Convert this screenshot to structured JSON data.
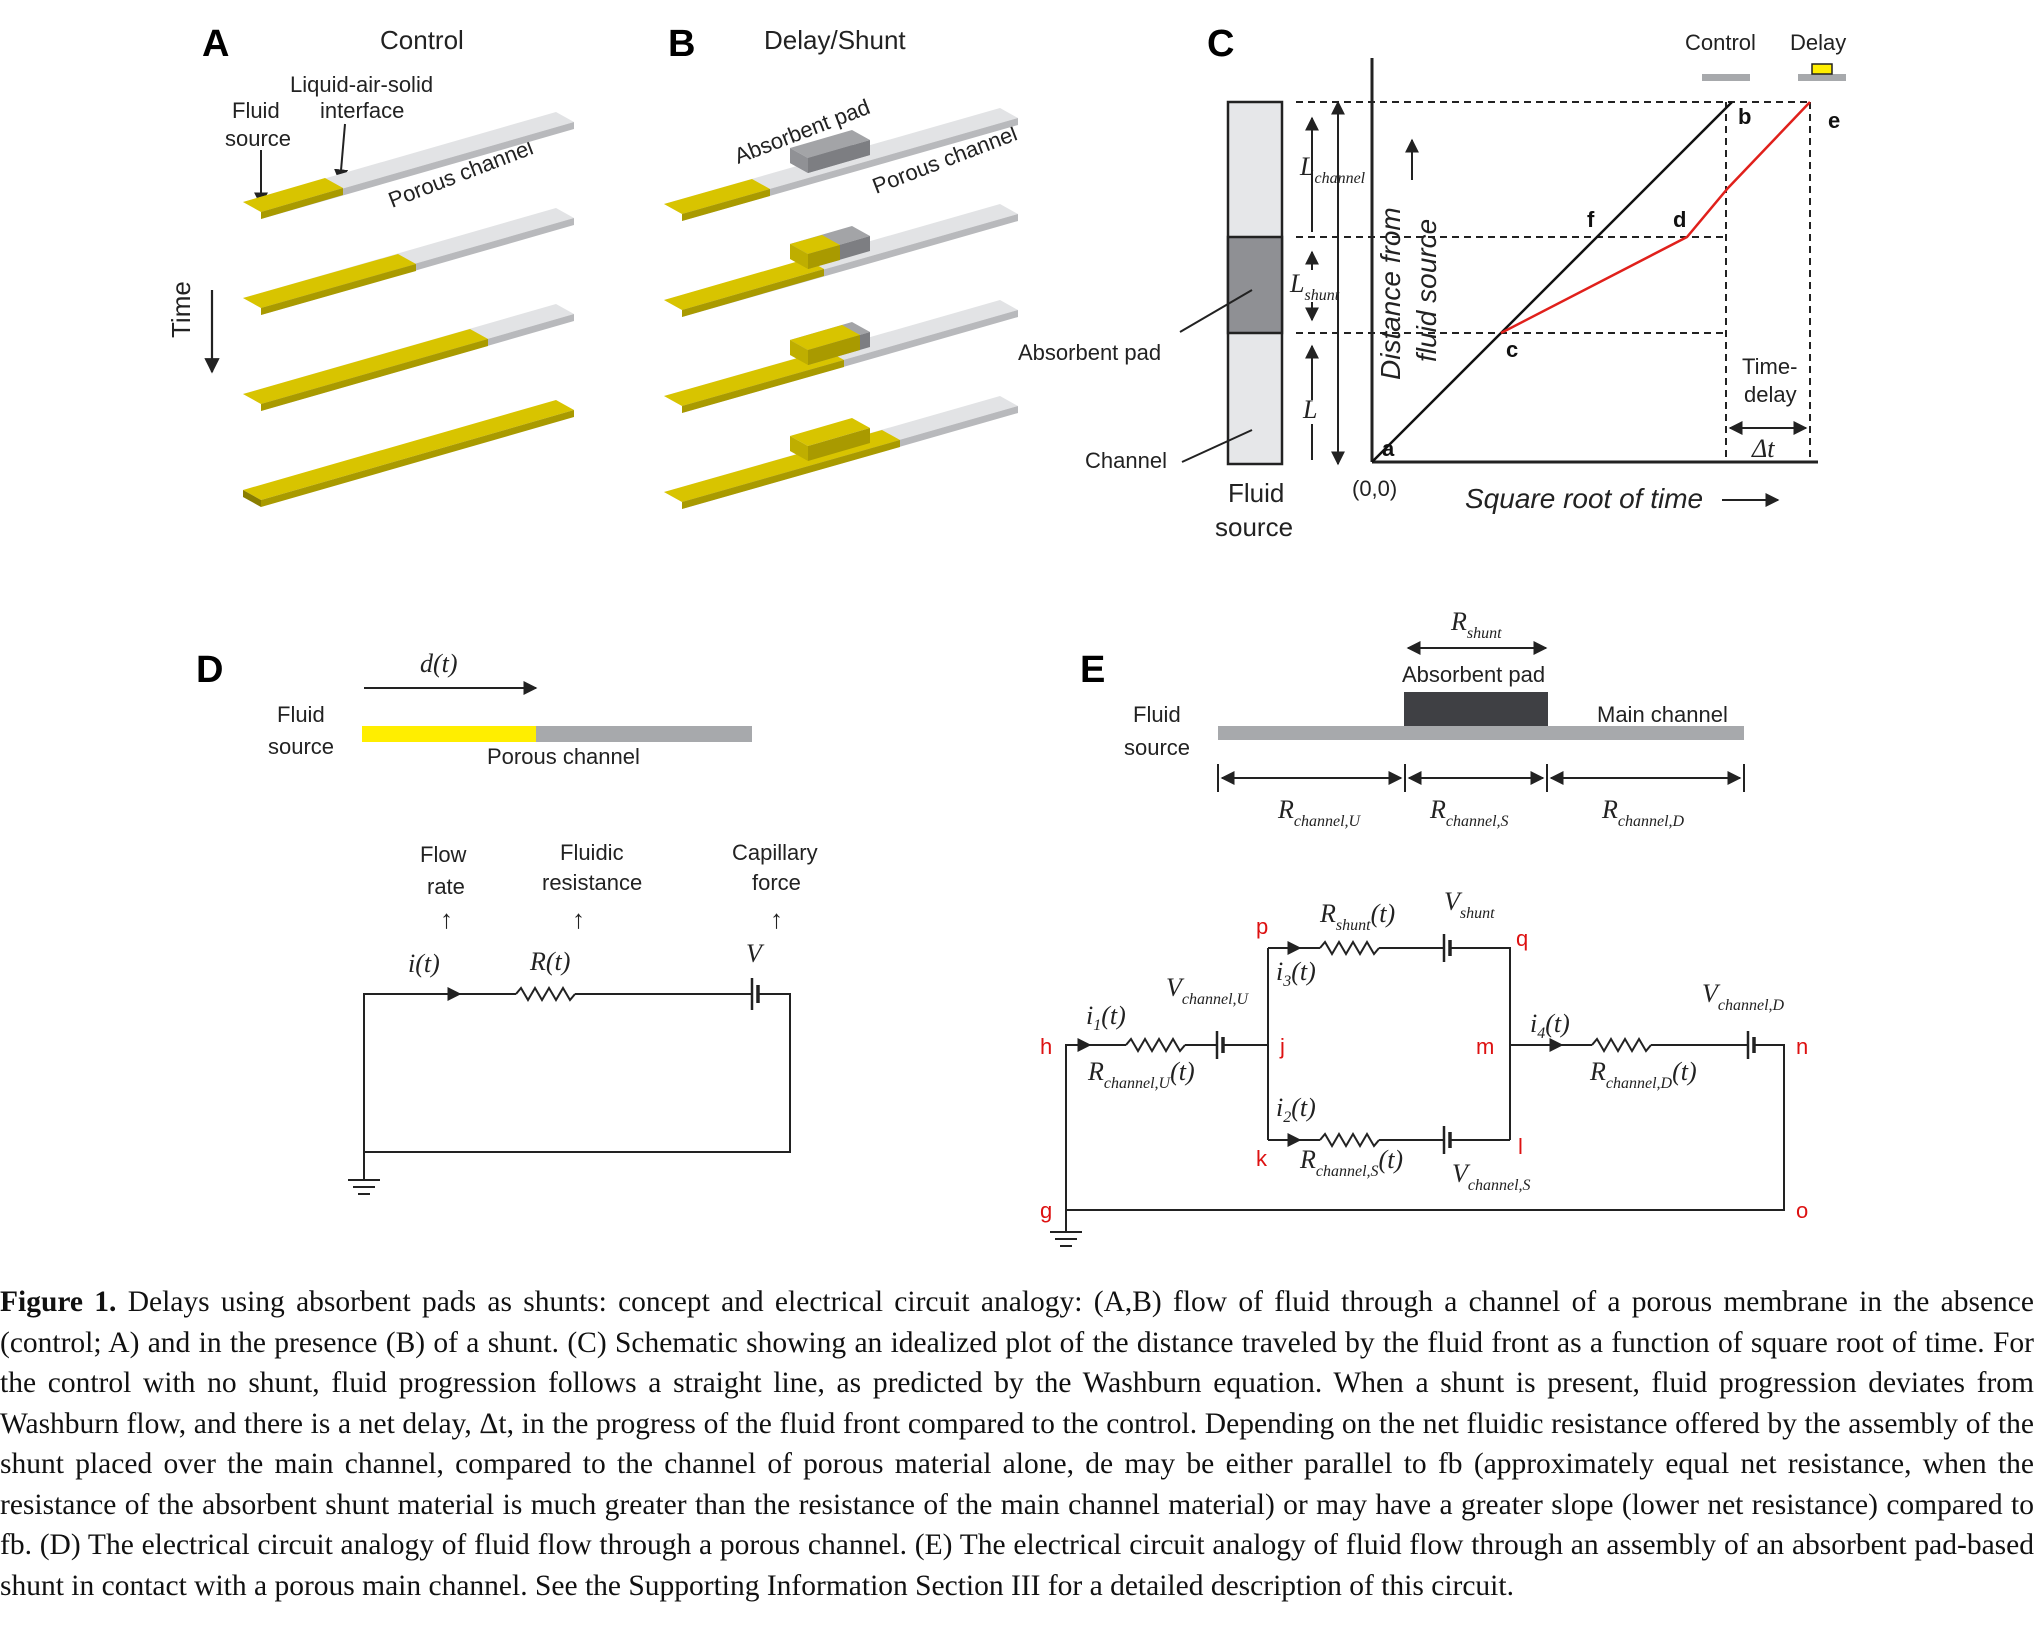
{
  "panel_a": {
    "letter": "A",
    "title": "Control",
    "fluid_source": [
      "Fluid",
      "source"
    ],
    "interface": [
      "Liquid-air-solid",
      "interface"
    ],
    "channel": "Porous channel",
    "time": "Time"
  },
  "panel_b": {
    "letter": "B",
    "title": "Delay/Shunt",
    "pad": "Absorbent pad",
    "channel": "Porous channel"
  },
  "panel_c": {
    "letter": "C",
    "legend_control": "Control",
    "legend_delay": "Delay",
    "l_channel": "L",
    "l_channel_sub": "channel",
    "l_shunt": "L",
    "l_shunt_sub": "shunt",
    "l": "L",
    "absorbent_pad": "Absorbent pad",
    "channel": "Channel",
    "fluid_source": [
      "Fluid",
      "source"
    ],
    "ylabel": [
      "Distance from",
      "fluid source"
    ],
    "xlabel": "Square root of time",
    "origin": "(0,0)",
    "points": {
      "a": "a",
      "b": "b",
      "c": "c",
      "d": "d",
      "e": "e",
      "f": "f"
    },
    "time_delay": [
      "Time-",
      "delay"
    ],
    "delta_t": "Δt",
    "colors": {
      "control": "#111111",
      "delay": "#e0201b",
      "pad": "#8f9094",
      "channel_bar": "#e6e7e9"
    }
  },
  "panel_d": {
    "letter": "D",
    "dt": "d(t)",
    "fluid_source": [
      "Fluid",
      "source"
    ],
    "channel": "Porous channel",
    "flow_rate": [
      "Flow",
      "rate"
    ],
    "resistance": [
      "Fluidic",
      "resistance"
    ],
    "capillary": [
      "Capillary",
      "force"
    ],
    "i_t": "i(t)",
    "r_t": "R(t)",
    "v": "V",
    "colors": {
      "fluid": "#ffee00",
      "channel": "#a7a9ac"
    }
  },
  "panel_e": {
    "letter": "E",
    "r_shunt": "R",
    "r_shunt_sub": "shunt",
    "pad": "Absorbent pad",
    "fluid_source": [
      "Fluid",
      "source"
    ],
    "main_channel": "Main channel",
    "r_u": "R",
    "r_u_sub": "channel,U",
    "r_s": "R",
    "r_s_sub": "channel,S",
    "r_d": "R",
    "r_d_sub": "channel,D",
    "nodes": {
      "p": "p",
      "q": "q",
      "h": "h",
      "j": "j",
      "m": "m",
      "n": "n",
      "k": "k",
      "l": "l",
      "g": "g",
      "o": "o"
    },
    "rshunt_t": "R",
    "rshunt_t_sub": "shunt",
    "rshunt_t_suffix": "(t)",
    "vshunt": "V",
    "vshunt_sub": "shunt",
    "i3": "i",
    "i3_sub": "3",
    "i1": "i",
    "i1_sub": "1",
    "vu": "V",
    "vu_sub": "channel,U",
    "ru_t": "R",
    "ru_t_sub": "channel,U",
    "i4": "i",
    "i4_sub": "4",
    "vd": "V",
    "vd_sub": "channel,D",
    "rd_t": "R",
    "rd_t_sub": "channel,D",
    "i2": "i",
    "i2_sub": "2",
    "rs_t": "R",
    "rs_t_sub": "channel,S",
    "vs": "V",
    "vs_sub": "channel,S",
    "t_suffix": "(t)"
  },
  "caption": {
    "title": "Figure 1.",
    "text": " Delays using absorbent pads as shunts: concept and electrical circuit analogy: (A,B) flow of fluid through a channel of a porous membrane in the absence (control; A) and in the presence (B) of a shunt. (C) Schematic showing an idealized plot of the distance traveled by the fluid front as a function of square root of time. For the control with no shunt, fluid progression follows a straight line, as predicted by the Washburn equation. When a shunt is present, fluid progression deviates from Washburn flow, and there is a net delay, Δt, in the progress of the fluid front compared to the control. Depending on the net fluidic resistance offered by the assembly of the shunt placed over the main channel, compared to the channel of porous material alone, de may be either parallel to fb (approximately equal net resistance, when the resistance of the absorbent shunt material is much greater than the resistance of the main channel material) or may have a greater slope (lower net resistance) compared to fb. (D) The electrical circuit analogy of fluid flow through a porous channel. (E) The electrical circuit analogy of fluid flow through an assembly of an absorbent pad-based shunt in contact with a porous main channel. See the Supporting Information Section III for a detailed description of this circuit."
  }
}
